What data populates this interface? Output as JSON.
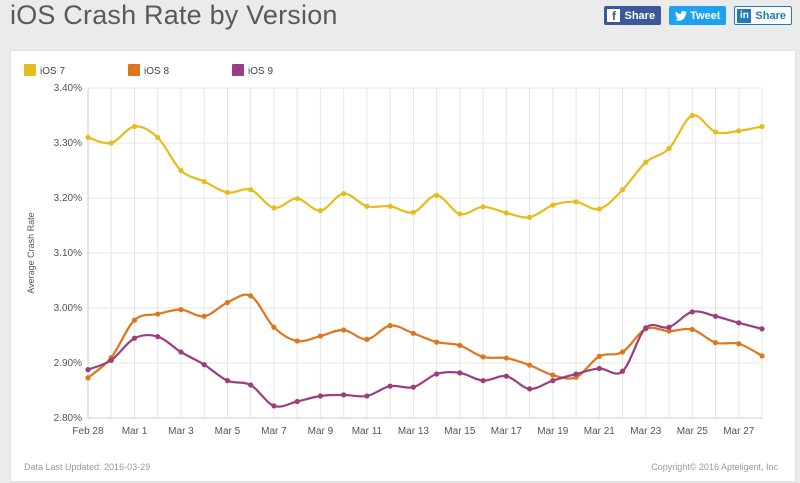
{
  "page": {
    "title": "iOS Crash Rate by Version"
  },
  "share": {
    "facebook": "Share",
    "twitter": "Tweet",
    "linkedin": "Share"
  },
  "footer": {
    "updated": "Data Last Updated: 2016-03-29",
    "copyright": "Copyright© 2016 Apteligent, Inc"
  },
  "colors": {
    "ios7": "#e6bd1c",
    "ios8": "#e0761c",
    "ios9": "#9b3d82",
    "grid": "#e6e6e6"
  },
  "chart_data": {
    "type": "line",
    "title": "iOS Crash Rate by Version",
    "xlabel": "",
    "ylabel": "Average Crash Rate",
    "ylim": [
      2.8,
      3.4
    ],
    "ytick_values": [
      2.8,
      2.9,
      3.0,
      3.1,
      3.2,
      3.3,
      3.4
    ],
    "ytick_labels": [
      "2.80%",
      "2.90%",
      "3.00%",
      "3.10%",
      "3.20%",
      "3.30%",
      "3.40%"
    ],
    "categories": [
      "Feb 28",
      "Feb 29",
      "Mar 1",
      "Mar 2",
      "Mar 3",
      "Mar 4",
      "Mar 5",
      "Mar 6",
      "Mar 7",
      "Mar 8",
      "Mar 9",
      "Mar 10",
      "Mar 11",
      "Mar 12",
      "Mar 13",
      "Mar 14",
      "Mar 15",
      "Mar 16",
      "Mar 17",
      "Mar 18",
      "Mar 19",
      "Mar 20",
      "Mar 21",
      "Mar 22",
      "Mar 23",
      "Mar 24",
      "Mar 25",
      "Mar 26",
      "Mar 27",
      "Mar 28"
    ],
    "xtick_labels": [
      "Feb 28",
      "Mar 1",
      "Mar 3",
      "Mar 5",
      "Mar 7",
      "Mar 9",
      "Mar 11",
      "Mar 13",
      "Mar 15",
      "Mar 17",
      "Mar 19",
      "Mar 21",
      "Mar 23",
      "Mar 25",
      "Mar 27"
    ],
    "legend_position": "top-left",
    "series": [
      {
        "name": "iOS 7",
        "color": "#e6bd1c",
        "values": [
          3.31,
          3.3,
          3.33,
          3.31,
          3.25,
          3.23,
          3.21,
          3.215,
          3.182,
          3.199,
          3.177,
          3.208,
          3.185,
          3.185,
          3.174,
          3.205,
          3.171,
          3.184,
          3.173,
          3.165,
          3.187,
          3.193,
          3.18,
          3.215,
          3.265,
          3.29,
          3.35,
          3.32,
          3.322,
          3.33
        ]
      },
      {
        "name": "iOS 8",
        "color": "#e0761c",
        "values": [
          2.873,
          2.91,
          2.978,
          2.989,
          2.997,
          2.985,
          3.01,
          3.022,
          2.965,
          2.94,
          2.949,
          2.96,
          2.943,
          2.968,
          2.954,
          2.938,
          2.932,
          2.911,
          2.909,
          2.896,
          2.878,
          2.874,
          2.912,
          2.92,
          2.962,
          2.958,
          2.961,
          2.937,
          2.935,
          2.913
        ]
      },
      {
        "name": "iOS 9",
        "color": "#9b3d82",
        "values": [
          2.888,
          2.905,
          2.945,
          2.948,
          2.92,
          2.897,
          2.868,
          2.86,
          2.822,
          2.83,
          2.84,
          2.842,
          2.84,
          2.858,
          2.856,
          2.88,
          2.882,
          2.868,
          2.876,
          2.853,
          2.868,
          2.88,
          2.89,
          2.885,
          2.964,
          2.965,
          2.993,
          2.985,
          2.973,
          2.962
        ]
      }
    ]
  }
}
